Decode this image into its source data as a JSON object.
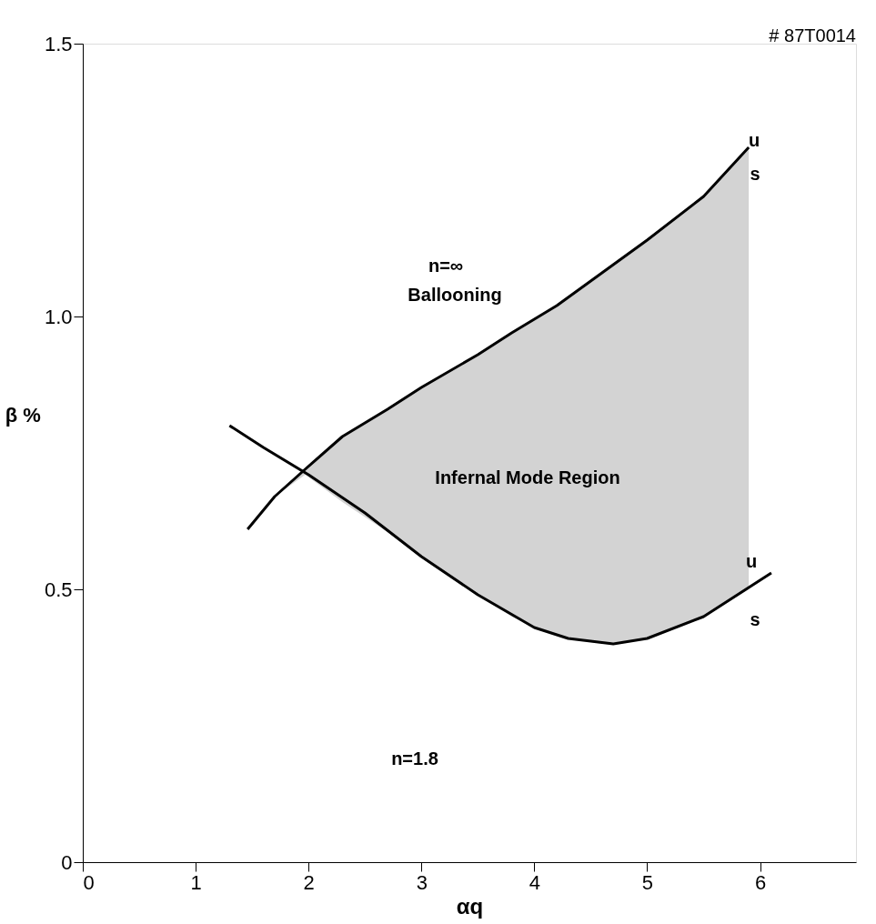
{
  "chart_data": {
    "type": "line",
    "xlabel": "αq",
    "ylabel": "β %",
    "xlim": [
      0,
      6.85
    ],
    "ylim": [
      0,
      1.5
    ],
    "xticks": [
      0,
      1,
      2,
      3,
      4,
      5,
      6
    ],
    "yticks": [
      0,
      0.5,
      {
        "value": 1,
        "label": "1.0"
      },
      1.5
    ],
    "grid": false,
    "marker": "none",
    "line_style": "solid",
    "series": [
      {
        "color": "#000000",
        "x": [
          1.46,
          1.7,
          1.97,
          2.3,
          2.7,
          3.0,
          3.5,
          3.8,
          4.2,
          4.6,
          5.0,
          5.5,
          5.9
        ],
        "values": [
          0.61,
          0.67,
          0.72,
          0.78,
          0.83,
          0.87,
          0.93,
          0.97,
          1.02,
          1.08,
          1.14,
          1.22,
          1.31
        ],
        "upper": [
          0.61,
          0.67,
          0.72,
          0.78,
          0.83,
          0.87,
          0.93,
          0.97,
          1.02,
          1.08,
          1.14,
          1.22,
          1.31
        ],
        "lower": [
          0.61,
          0.67,
          0.71,
          0.66,
          0.605,
          0.56,
          0.49,
          0.45,
          0.415,
          0.4,
          0.41,
          0.45,
          0.5
        ]
      },
      {
        "color": "#000000",
        "x": [
          1.3,
          1.6,
          2.0,
          2.5,
          3.0,
          3.5,
          4.0,
          4.3,
          4.7,
          5.0,
          5.5,
          5.8,
          6.1
        ],
        "values": [
          0.8,
          0.76,
          0.71,
          0.64,
          0.56,
          0.49,
          0.43,
          0.41,
          0.4,
          0.41,
          0.45,
          0.49,
          0.53
        ]
      }
    ],
    "annotations": [
      "n=∞",
      "Ballooning",
      "Infernal Mode Region",
      "n=1.8",
      "u",
      "s",
      "u",
      "s",
      "# 87T0014"
    ]
  }
}
